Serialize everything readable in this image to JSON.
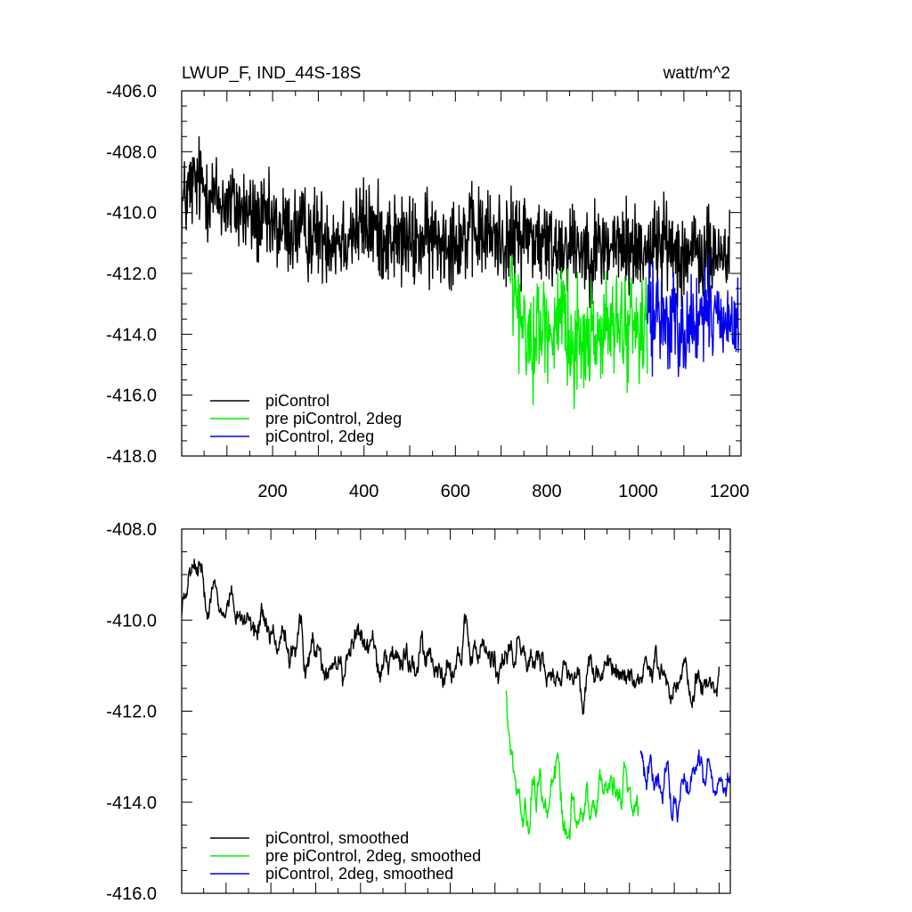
{
  "chart_data": [
    {
      "type": "line",
      "title": "LWUP_F, IND_44S-18S",
      "units": "watt/m^2",
      "xlim": [
        1,
        1225
      ],
      "ylim": [
        -418.0,
        -406.0
      ],
      "x_ticks": [
        200,
        400,
        600,
        800,
        1000,
        1200
      ],
      "x_tick_labels": [
        "200",
        "400",
        "600",
        "800",
        "1000",
        "1200"
      ],
      "y_ticks": [
        -406.0,
        -408.0,
        -410.0,
        -412.0,
        -414.0,
        -416.0,
        -418.0
      ],
      "y_tick_labels": [
        "-406.0",
        "-408.0",
        "-410.0",
        "-412.0",
        "-414.0",
        "-416.0",
        "-418.0"
      ],
      "legend_position": "bottom-left",
      "series": [
        {
          "name": "piControl",
          "color": "#000000",
          "x_start": 1,
          "x_end": 1200,
          "x_key": [
            1,
            20,
            40,
            80,
            120,
            160,
            200,
            250,
            300,
            350,
            400,
            450,
            500,
            550,
            600,
            650,
            700,
            720,
            750,
            800,
            850,
            900,
            950,
            1000,
            1050,
            1100,
            1150,
            1200
          ],
          "y_key": [
            -409.8,
            -409.2,
            -409.0,
            -409.6,
            -409.8,
            -410.2,
            -410.5,
            -410.6,
            -410.7,
            -410.8,
            -410.4,
            -410.8,
            -411.0,
            -410.9,
            -410.8,
            -410.7,
            -410.8,
            -411.0,
            -410.6,
            -411.1,
            -411.0,
            -411.2,
            -411.1,
            -411.2,
            -411.0,
            -411.3,
            -411.5,
            -411.3
          ],
          "amplitude": 0.75
        },
        {
          "name": "pre piControl, 2deg",
          "color": "#00ee00",
          "x_start": 720,
          "x_end": 1020,
          "x_key": [
            720,
            740,
            760,
            800,
            840,
            880,
            920,
            960,
            1000,
            1020
          ],
          "y_key": [
            -412.2,
            -413.5,
            -414.2,
            -413.6,
            -414.0,
            -414.3,
            -413.9,
            -413.8,
            -413.7,
            -413.6
          ],
          "amplitude": 0.85
        },
        {
          "name": "piControl, 2deg",
          "color": "#0000ee",
          "x_start": 1020,
          "x_end": 1220,
          "x_key": [
            1020,
            1060,
            1100,
            1140,
            1180,
            1220
          ],
          "y_key": [
            -413.3,
            -413.5,
            -413.8,
            -413.5,
            -413.3,
            -413.9
          ],
          "amplitude": 0.8
        }
      ]
    },
    {
      "type": "line",
      "title": "",
      "units": "",
      "xlim": [
        1,
        1225
      ],
      "ylim": [
        -416.0,
        -408.0
      ],
      "x_ticks": [
        200,
        400,
        600,
        800,
        1000,
        1200
      ],
      "x_tick_labels": [],
      "y_ticks": [
        -408.0,
        -410.0,
        -412.0,
        -414.0,
        -416.0
      ],
      "y_tick_labels": [
        "-408.0",
        "-410.0",
        "-412.0",
        "-414.0",
        "-416.0"
      ],
      "legend_position": "bottom-left",
      "series": [
        {
          "name": "piControl, smoothed",
          "color": "#000000",
          "x_start": 1,
          "x_end": 1200,
          "x_key": [
            1,
            20,
            40,
            80,
            120,
            160,
            200,
            250,
            300,
            350,
            400,
            450,
            500,
            550,
            600,
            650,
            700,
            720,
            750,
            800,
            850,
            900,
            950,
            1000,
            1050,
            1100,
            1150,
            1200
          ],
          "y_key": [
            -409.8,
            -409.2,
            -409.0,
            -409.6,
            -409.8,
            -410.2,
            -410.5,
            -410.6,
            -410.7,
            -410.8,
            -410.4,
            -410.8,
            -411.0,
            -410.9,
            -410.8,
            -410.7,
            -410.8,
            -411.0,
            -410.6,
            -411.1,
            -411.0,
            -411.2,
            -411.1,
            -411.2,
            -411.0,
            -411.3,
            -411.5,
            -411.3
          ],
          "amplitude": 0.35
        },
        {
          "name": "pre piControl, 2deg, smoothed",
          "color": "#00ee00",
          "x_start": 725,
          "x_end": 1020,
          "x_key": [
            725,
            740,
            760,
            800,
            840,
            880,
            920,
            960,
            1000,
            1020
          ],
          "y_key": [
            -412.1,
            -413.5,
            -414.3,
            -413.6,
            -414.0,
            -414.3,
            -413.9,
            -413.8,
            -413.7,
            -413.8
          ],
          "amplitude": 0.4
        },
        {
          "name": "piControl, 2deg, smoothed",
          "color": "#0000ee",
          "x_start": 1025,
          "x_end": 1225,
          "x_key": [
            1025,
            1060,
            1100,
            1140,
            1180,
            1225
          ],
          "y_key": [
            -413.3,
            -413.5,
            -413.8,
            -413.5,
            -413.3,
            -413.8
          ],
          "amplitude": 0.35
        }
      ]
    }
  ]
}
